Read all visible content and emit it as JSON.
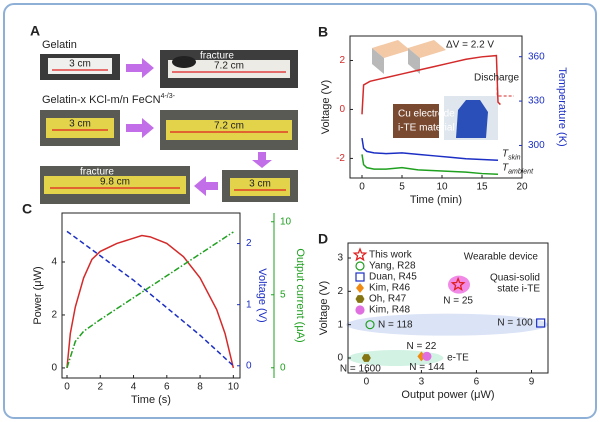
{
  "panel_a": {
    "panel": "A",
    "labels": [
      {
        "main": "Gelatin"
      },
      {
        "main": "Gelatin-x KCl-m/n FeCN",
        "sup": "4-/3-"
      }
    ],
    "photo_texts": [
      "3 cm",
      "fracture",
      "7.2 cm",
      "3 cm",
      "7.2 cm",
      "3 cm",
      "fracture",
      "9.8 cm"
    ]
  },
  "chart_data": [
    {
      "type": "line",
      "panel": "B",
      "xlabel": "Time (min)",
      "ylabel": "Voltage (V)",
      "y2label": "Temperature (K)",
      "xlim": [
        -1.5,
        20
      ],
      "xticks": [
        0,
        5,
        10,
        15,
        20
      ],
      "ylim": [
        -2.8,
        3.0
      ],
      "yticks": [
        -2,
        0,
        2
      ],
      "ycolor": "#d42a2a",
      "y2lim": [
        278,
        374
      ],
      "y2ticks": [
        300,
        330,
        360
      ],
      "y2color": "#1c2fc4",
      "annotations": [
        "ΔV = 2.2 V",
        "Discharge",
        "Cu electrode",
        "i-TE material"
      ],
      "series": [
        {
          "color": "#d42a2a",
          "x": [
            0,
            0.2,
            1,
            3,
            5,
            7,
            9,
            11,
            13,
            15,
            16.8,
            17,
            17.3
          ],
          "values": [
            -0.2,
            1.0,
            1.15,
            1.3,
            1.45,
            1.6,
            1.75,
            1.9,
            2.05,
            2.15,
            2.2,
            0.3,
            0.2
          ]
        },
        {
          "label": "T",
          "sub": "skin",
          "color": "#1c2fc4",
          "axis": "y2",
          "x": [
            0,
            0.2,
            0.6,
            1.5,
            3,
            5,
            7,
            9,
            11,
            13,
            15,
            17
          ],
          "values": [
            305,
            298,
            296,
            295,
            294.5,
            295,
            294,
            293,
            292,
            291,
            290.5,
            290
          ]
        },
        {
          "label": "T",
          "sub": "ambient",
          "color": "#1fa01f",
          "axis": "y2",
          "x": [
            0,
            0.2,
            0.6,
            1.5,
            3,
            5,
            7,
            9,
            11,
            13,
            15,
            17
          ],
          "values": [
            294,
            287,
            285,
            284,
            284,
            285,
            283.5,
            283,
            282.5,
            282,
            281,
            280.5
          ]
        }
      ]
    },
    {
      "type": "line",
      "panel": "C",
      "xlabel": "Time (s)",
      "ylabel": "Power (μW)",
      "y2label": "Voltage (V)",
      "y3label": "Output current (μA)",
      "xlim": [
        -0.3,
        10.4
      ],
      "xticks": [
        0,
        2,
        4,
        6,
        8,
        10
      ],
      "ylim": [
        -0.38,
        5.85
      ],
      "yticks": [
        0,
        2,
        4
      ],
      "ycolor": "#222222",
      "y2lim": [
        -0.2,
        2.5
      ],
      "y2ticks": [
        0,
        1,
        2
      ],
      "y2color": "#1c2fc4",
      "y3lim": [
        -0.7,
        10.6
      ],
      "y3ticks": [
        0,
        5,
        10
      ],
      "y3color": "#1fa01f",
      "series": [
        {
          "color": "#d42a2a",
          "style": "solid",
          "x": [
            0,
            0.2,
            0.5,
            1,
            1.5,
            2,
            3,
            4,
            4.5,
            5,
            6,
            7,
            8,
            9,
            9.5,
            10
          ],
          "values": [
            0,
            1.3,
            2.3,
            3.4,
            4.1,
            4.4,
            4.7,
            4.9,
            5.0,
            4.95,
            4.7,
            4.2,
            3.4,
            2.2,
            1.3,
            0
          ]
        },
        {
          "color": "#1c2fc4",
          "style": "dashed",
          "axis": "y2",
          "x": [
            0,
            2,
            4,
            6,
            8,
            10
          ],
          "values": [
            2.2,
            1.8,
            1.4,
            0.95,
            0.5,
            0
          ]
        },
        {
          "color": "#1fa01f",
          "style": "dashdot",
          "axis": "y3",
          "x": [
            0,
            0.5,
            1,
            2,
            4,
            6,
            8,
            10
          ],
          "values": [
            0,
            1.8,
            2.5,
            3.3,
            4.8,
            6.3,
            7.8,
            9.3
          ]
        }
      ]
    },
    {
      "type": "scatter",
      "panel": "D",
      "xlabel": "Output power (μW)",
      "ylabel": "Voltage (V)",
      "xlim": [
        -1.0,
        9.9
      ],
      "xticks": [
        0,
        3,
        6,
        9
      ],
      "ylim": [
        -0.45,
        3.45
      ],
      "yticks": [
        0,
        1,
        2,
        3
      ],
      "ycolor": "#222222",
      "legend": "upper left",
      "annotations": [
        "Wearable device",
        "Quasi-solid",
        "state i-TE",
        "e-TE"
      ],
      "series": [
        {
          "name": "This work",
          "marker": "star",
          "color": "#e02020",
          "x": [
            5
          ],
          "values": [
            2.2
          ],
          "note": "N = 25"
        },
        {
          "name": "Yang, R28",
          "marker": "circle-open",
          "color": "#1fa01f",
          "x": [
            0.2
          ],
          "values": [
            1.0
          ],
          "note": "N = 118"
        },
        {
          "name": "Duan, R45",
          "marker": "square-open",
          "color": "#1c2fc4",
          "x": [
            9.5
          ],
          "values": [
            1.05
          ],
          "note": "N = 100"
        },
        {
          "name": "Kim, R46",
          "marker": "diamond",
          "color": "#f08a10",
          "x": [
            3
          ],
          "values": [
            0.05
          ],
          "note": "N = 22"
        },
        {
          "name": "Oh, R47",
          "marker": "hexagon",
          "color": "#857512",
          "x": [
            0
          ],
          "values": [
            0
          ],
          "note": "N = 1600"
        },
        {
          "name": "Kim, R48",
          "marker": "circle",
          "color": "#e070e0",
          "x": [
            3.3
          ],
          "values": [
            0.05
          ],
          "note": "N = 144"
        }
      ]
    }
  ]
}
